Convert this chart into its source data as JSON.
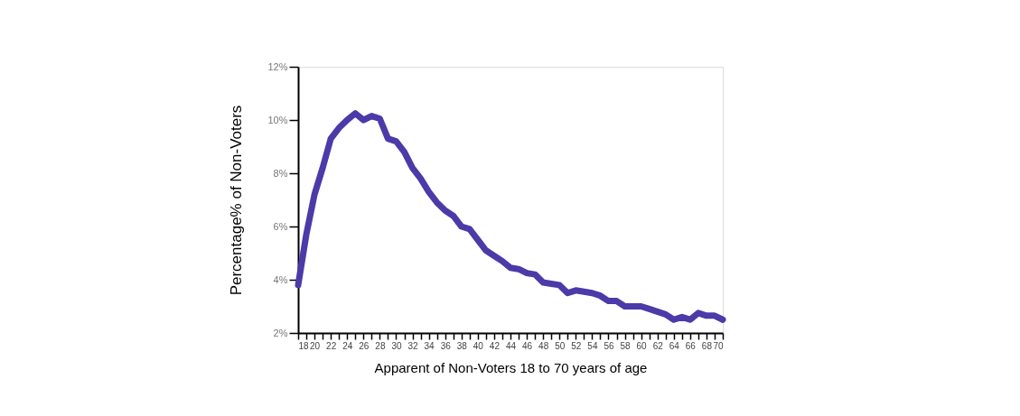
{
  "chart_data": {
    "type": "line",
    "xlabel": "Apparent of Non-Voters 18 to 70 years of age",
    "ylabel": "Percentage% of Non-Voters",
    "x": [
      18,
      19,
      20,
      21,
      22,
      23,
      24,
      25,
      26,
      27,
      28,
      29,
      30,
      31,
      32,
      33,
      34,
      35,
      36,
      37,
      38,
      39,
      40,
      41,
      42,
      43,
      44,
      45,
      46,
      47,
      48,
      49,
      50,
      51,
      52,
      53,
      54,
      55,
      56,
      57,
      58,
      59,
      60,
      61,
      62,
      63,
      64,
      65,
      66,
      67,
      68,
      69,
      70
    ],
    "series": [
      {
        "color": "#4b3aa8",
        "values": [
          3.8,
          5.7,
          7.2,
          8.2,
          9.3,
          9.7,
          10.0,
          10.25,
          10.0,
          10.15,
          10.05,
          9.3,
          9.2,
          8.8,
          8.2,
          7.8,
          7.3,
          6.9,
          6.6,
          6.4,
          6.0,
          5.9,
          5.5,
          5.1,
          4.9,
          4.7,
          4.45,
          4.4,
          4.25,
          4.2,
          3.9,
          3.85,
          3.8,
          3.5,
          3.6,
          3.55,
          3.5,
          3.4,
          3.2,
          3.2,
          3.0,
          3.0,
          3.0,
          2.9,
          2.8,
          2.7,
          2.5,
          2.6,
          2.5,
          2.75,
          2.65,
          2.65,
          2.5
        ]
      }
    ],
    "xlim": [
      18,
      70
    ],
    "xticks": [
      18,
      {
        "value": 19,
        "label": null
      },
      20,
      {
        "value": 21,
        "label": null
      },
      22,
      {
        "value": 23,
        "label": null
      },
      24,
      {
        "value": 25,
        "label": null
      },
      26,
      {
        "value": 27,
        "label": null
      },
      28,
      {
        "value": 29,
        "label": null
      },
      30,
      {
        "value": 31,
        "label": null
      },
      32,
      {
        "value": 33,
        "label": null
      },
      34,
      {
        "value": 35,
        "label": null
      },
      36,
      {
        "value": 37,
        "label": null
      },
      38,
      {
        "value": 39,
        "label": null
      },
      40,
      {
        "value": 41,
        "label": null
      },
      42,
      {
        "value": 43,
        "label": null
      },
      44,
      {
        "value": 45,
        "label": null
      },
      46,
      {
        "value": 47,
        "label": null
      },
      48,
      {
        "value": 49,
        "label": null
      },
      50,
      {
        "value": 51,
        "label": null
      },
      52,
      {
        "value": 53,
        "label": null
      },
      54,
      {
        "value": 55,
        "label": null
      },
      56,
      {
        "value": 57,
        "label": null
      },
      58,
      {
        "value": 59,
        "label": null
      },
      60,
      {
        "value": 61,
        "label": null
      },
      62,
      {
        "value": 63,
        "label": null
      },
      64,
      {
        "value": 65,
        "label": null
      },
      66,
      {
        "value": 67,
        "label": null
      },
      68,
      {
        "value": 69,
        "label": null
      },
      70
    ],
    "ylim": [
      2,
      12
    ],
    "yticks": [
      {
        "value": 2,
        "label": "2%"
      },
      {
        "value": 4,
        "label": "4%"
      },
      {
        "value": 6,
        "label": "6%"
      },
      {
        "value": 8,
        "label": "8%"
      },
      {
        "value": 10,
        "label": "10%"
      },
      {
        "value": 12,
        "label": "12%"
      }
    ],
    "grid": false,
    "legend": false,
    "line_style": "solid"
  }
}
